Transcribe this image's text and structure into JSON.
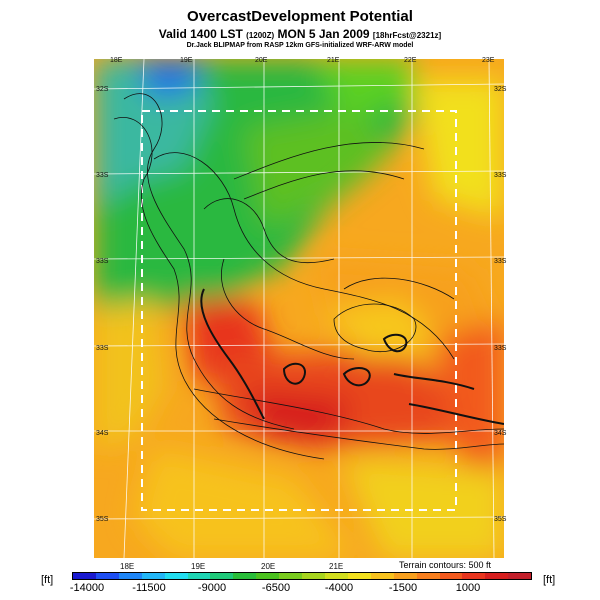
{
  "header": {
    "title": "OvercastDevelopment Potential",
    "valid_prefix": "Valid 1400 LST",
    "valid_small1": "(1200Z)",
    "valid_mid": "MON 5 Jan 2009",
    "valid_small2": "[18hrFcst@2321z]",
    "subtitle": "Dr.Jack BLIPMAP from RASP 12km GFS-initialized WRF-ARW model"
  },
  "map": {
    "top_lon_labels": [
      "18E",
      "19E",
      "20E",
      "21E",
      "22E",
      "23E"
    ],
    "bottom_lon_labels": [
      "18E",
      "19E",
      "20E",
      "21E"
    ],
    "left_lat_labels": [
      "32S",
      "33S",
      "33S",
      "33S",
      "34S",
      "35S"
    ],
    "right_lat_labels": [
      "32S",
      "33S",
      "33S",
      "33S",
      "34S",
      "35S"
    ],
    "terrain_note": "Terrain contours: 500 ft"
  },
  "legend": {
    "unit": "[ft]",
    "ticks": [
      "-14000",
      "-11500",
      "-9000",
      "-6500",
      "-4000",
      "-1500",
      "1000"
    ],
    "colors": [
      "#1a1ad0",
      "#1e4ff2",
      "#1f86f7",
      "#22b6f7",
      "#22ddf0",
      "#1fd5b4",
      "#1fc97a",
      "#29be3a",
      "#4bc21f",
      "#7acc1f",
      "#a8d51f",
      "#d2de1f",
      "#f2e01f",
      "#f7c21f",
      "#f7a01f",
      "#f77f1f",
      "#f25a1f",
      "#e8361f",
      "#d61f1f",
      "#c21f2a"
    ]
  }
}
